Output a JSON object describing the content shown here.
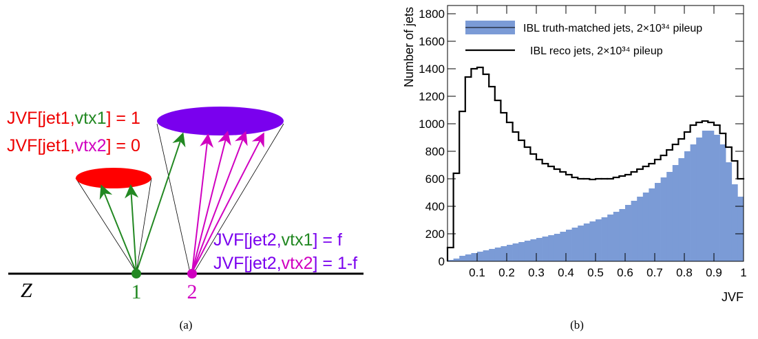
{
  "diagram": {
    "jet1_lines": [
      [
        "JVF[jet1,",
        "vtx1",
        "] = 1"
      ],
      [
        "JVF[jet1,",
        "vtx2",
        "] = 0"
      ]
    ],
    "jet2_lines": [
      [
        "JVF[jet2,",
        "vtx1",
        "] = f"
      ],
      [
        "JVF[jet2,",
        "vtx2",
        "] = 1-f"
      ]
    ],
    "axis_label": "Z",
    "vertex_labels": [
      "1",
      "2"
    ]
  },
  "captions": [
    "(a)",
    "(b)"
  ],
  "chart_data": {
    "type": "histogram",
    "x_label": "JVF",
    "y_label": "Number of jets",
    "bins": [
      0,
      0.02,
      0.04,
      0.06,
      0.08,
      0.1,
      0.12,
      0.14,
      0.16,
      0.18,
      0.2,
      0.22,
      0.24,
      0.26,
      0.28,
      0.3,
      0.32,
      0.34,
      0.36,
      0.38,
      0.4,
      0.42,
      0.44,
      0.46,
      0.48,
      0.5,
      0.52,
      0.54,
      0.56,
      0.58,
      0.6,
      0.62,
      0.64,
      0.66,
      0.68,
      0.7,
      0.72,
      0.74,
      0.76,
      0.78,
      0.8,
      0.82,
      0.84,
      0.86,
      0.88,
      0.9,
      0.92,
      0.94,
      0.96,
      0.98,
      1
    ],
    "series": [
      {
        "name": "IBL truth-matched jets, 2×10³⁴ pileup",
        "color": "#7b9bd6",
        "style": "filled",
        "values": [
          10,
          20,
          40,
          50,
          60,
          70,
          80,
          90,
          100,
          110,
          120,
          130,
          140,
          150,
          160,
          170,
          180,
          190,
          200,
          215,
          230,
          245,
          260,
          275,
          290,
          305,
          320,
          340,
          360,
          380,
          410,
          440,
          470,
          500,
          530,
          570,
          610,
          650,
          700,
          750,
          800,
          850,
          900,
          950,
          950,
          920,
          850,
          720,
          560,
          470
        ]
      },
      {
        "name": "IBL reco jets, 2×10³⁴ pileup",
        "color": "#000000",
        "style": "line",
        "values": [
          100,
          640,
          1090,
          1340,
          1400,
          1410,
          1360,
          1270,
          1170,
          1080,
          1010,
          940,
          880,
          830,
          780,
          740,
          710,
          690,
          670,
          650,
          630,
          610,
          600,
          600,
          595,
          600,
          600,
          600,
          610,
          620,
          630,
          650,
          670,
          690,
          710,
          740,
          770,
          810,
          850,
          890,
          940,
          990,
          1010,
          1020,
          1010,
          990,
          930,
          830,
          730,
          600
        ]
      }
    ],
    "xlim": [
      0,
      1
    ],
    "ylim": [
      0,
      1860
    ],
    "xticks": [
      0.1,
      0.2,
      0.3,
      0.4,
      0.5,
      0.6,
      0.7,
      0.8,
      0.9,
      1
    ],
    "yticks": [
      0,
      200,
      400,
      600,
      800,
      1000,
      1200,
      1400,
      1600,
      1800
    ],
    "legend": "top-left"
  }
}
